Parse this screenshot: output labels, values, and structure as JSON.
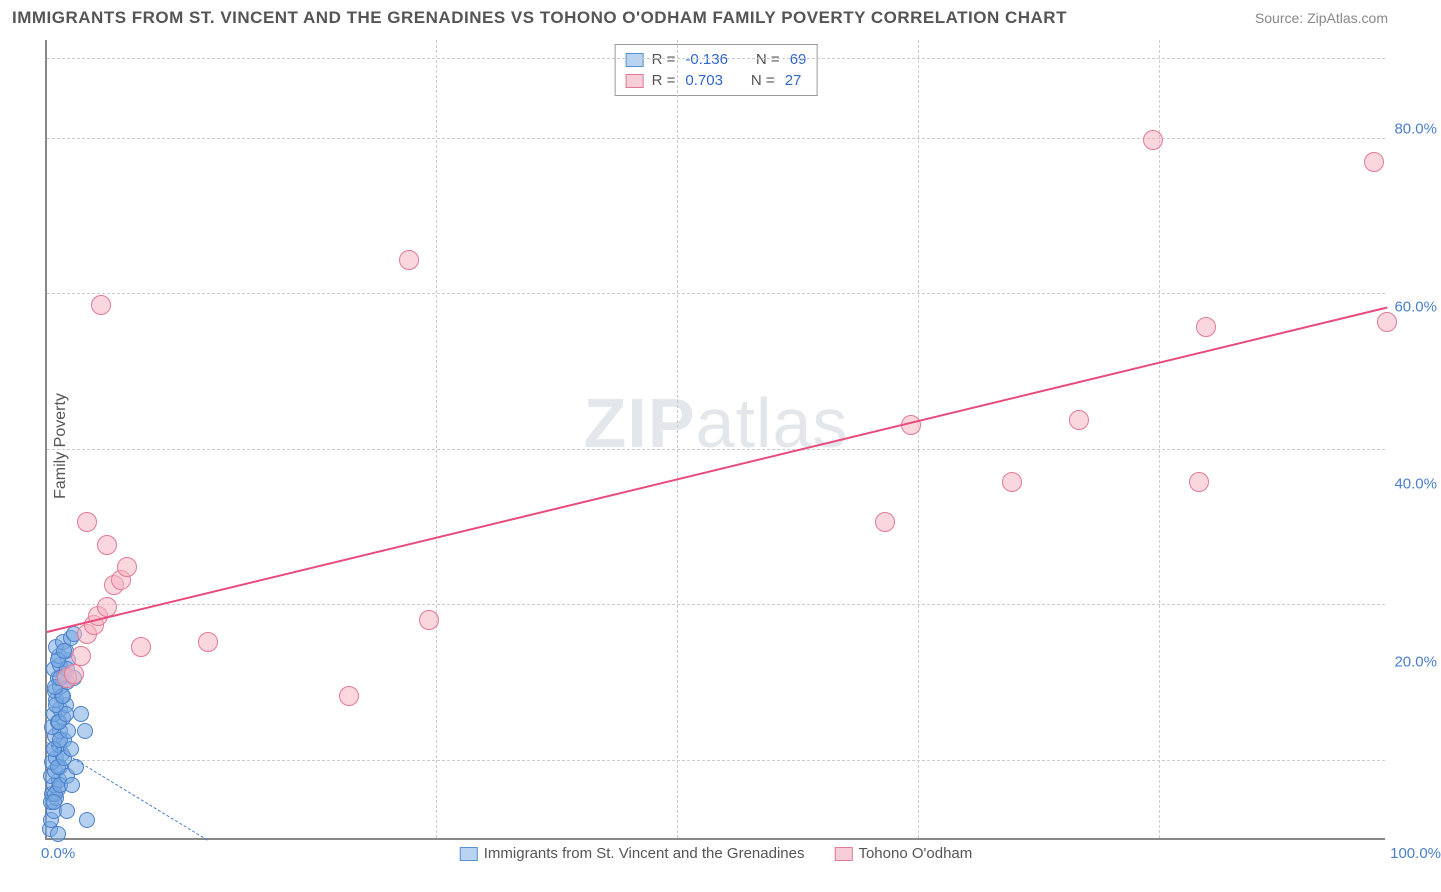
{
  "chart": {
    "type": "scatter",
    "title": "IMMIGRANTS FROM ST. VINCENT AND THE GRENADINES VS TOHONO O'ODHAM FAMILY POVERTY CORRELATION CHART",
    "source": "Source: ZipAtlas.com",
    "ylabel": "Family Poverty",
    "watermark": "ZIPatlas",
    "background_color": "#ffffff",
    "grid_color": "#cccccc",
    "axis_color": "#888888",
    "tick_label_color": "#4a7fc9",
    "title_color": "#555555",
    "title_fontsize": 17,
    "label_fontsize": 16,
    "tick_fontsize": 15,
    "xlim": [
      0,
      100
    ],
    "ylim": [
      0,
      90
    ],
    "yticks": [
      20,
      40,
      60,
      80
    ],
    "ytick_labels": [
      "20.0%",
      "40.0%",
      "60.0%",
      "80.0%"
    ],
    "xtick_left": "0.0%",
    "xtick_right": "100.0%",
    "gridlines_h": [
      9,
      26.5,
      44,
      61.5,
      79,
      88
    ],
    "gridlines_v": [
      29,
      47,
      65,
      83
    ],
    "legend": {
      "rows": [
        {
          "swatch_fill": "#b9d4f0",
          "swatch_border": "#5a8fd0",
          "r_label": "R =",
          "r_value": "-0.136",
          "n_label": "N =",
          "n_value": "69"
        },
        {
          "swatch_fill": "#f7cdd7",
          "swatch_border": "#e27a95",
          "r_label": "R =",
          "r_value": "0.703",
          "n_label": "N =",
          "n_value": "27"
        }
      ]
    },
    "bottom_legend": [
      {
        "swatch_fill": "#b9d4f0",
        "swatch_border": "#5a8fd0",
        "label": "Immigrants from St. Vincent and the Grenadines"
      },
      {
        "swatch_fill": "#f7cdd7",
        "swatch_border": "#e27a95",
        "label": "Tohono O'odham"
      }
    ],
    "series": [
      {
        "name": "Immigrants from St. Vincent and the Grenadines",
        "marker_fill": "rgba(120,170,225,0.55)",
        "marker_border": "#4a7fc9",
        "marker_radius": 8,
        "points": [
          [
            0.2,
            1
          ],
          [
            0.3,
            2
          ],
          [
            0.5,
            3
          ],
          [
            0.3,
            4
          ],
          [
            0.7,
            4.5
          ],
          [
            0.4,
            5
          ],
          [
            0.8,
            5.5
          ],
          [
            0.5,
            6
          ],
          [
            0.9,
            6.5
          ],
          [
            0.3,
            7
          ],
          [
            0.6,
            7.5
          ],
          [
            1.0,
            8
          ],
          [
            0.4,
            8.5
          ],
          [
            0.7,
            9
          ],
          [
            1.1,
            9.5
          ],
          [
            0.5,
            10
          ],
          [
            0.9,
            10.5
          ],
          [
            1.3,
            11
          ],
          [
            0.6,
            11.5
          ],
          [
            1.0,
            12
          ],
          [
            0.4,
            12.5
          ],
          [
            0.8,
            13
          ],
          [
            1.2,
            13.5
          ],
          [
            0.5,
            14
          ],
          [
            1.0,
            14.5
          ],
          [
            1.4,
            15
          ],
          [
            0.7,
            15.5
          ],
          [
            1.1,
            16
          ],
          [
            0.6,
            16.5
          ],
          [
            1.0,
            17
          ],
          [
            1.5,
            17.5
          ],
          [
            0.8,
            18
          ],
          [
            1.3,
            18.5
          ],
          [
            0.5,
            19
          ],
          [
            1.0,
            19.5
          ],
          [
            1.6,
            20
          ],
          [
            0.9,
            20.5
          ],
          [
            1.4,
            21
          ],
          [
            0.7,
            21.5
          ],
          [
            1.2,
            22
          ],
          [
            1.8,
            22.5
          ],
          [
            0.6,
            5
          ],
          [
            1.0,
            6
          ],
          [
            1.5,
            7
          ],
          [
            0.8,
            8
          ],
          [
            1.3,
            9
          ],
          [
            0.5,
            10
          ],
          [
            1.0,
            11
          ],
          [
            1.6,
            12
          ],
          [
            0.9,
            13
          ],
          [
            1.4,
            14
          ],
          [
            0.7,
            15
          ],
          [
            1.2,
            16
          ],
          [
            0.6,
            17
          ],
          [
            1.0,
            18
          ],
          [
            1.5,
            19
          ],
          [
            0.8,
            20
          ],
          [
            1.3,
            21
          ],
          [
            2.0,
            23
          ],
          [
            0.5,
            4
          ],
          [
            1.8,
            10
          ],
          [
            2.2,
            8
          ],
          [
            2.5,
            14
          ],
          [
            1.9,
            6
          ],
          [
            3.0,
            2
          ],
          [
            2.8,
            12
          ],
          [
            1.5,
            3
          ],
          [
            2.0,
            18
          ],
          [
            0.8,
            0.5
          ]
        ],
        "trendline": {
          "x1": 0,
          "y1": 11,
          "x2": 12,
          "y2": 0,
          "color": "#4a7fc9",
          "dashed": true,
          "width": 1.5
        }
      },
      {
        "name": "Tohono O'odham",
        "marker_fill": "rgba(245,180,195,0.55)",
        "marker_border": "#e27a95",
        "marker_radius": 10,
        "points": [
          [
            1.5,
            18
          ],
          [
            2.0,
            18.5
          ],
          [
            2.5,
            20.5
          ],
          [
            3.0,
            23
          ],
          [
            3.5,
            24
          ],
          [
            3.8,
            25
          ],
          [
            4.5,
            26
          ],
          [
            5.0,
            28.5
          ],
          [
            5.5,
            29
          ],
          [
            6.0,
            30.5
          ],
          [
            3.0,
            35.5
          ],
          [
            4.5,
            33
          ],
          [
            7.0,
            21.5
          ],
          [
            12.0,
            22
          ],
          [
            22.5,
            16
          ],
          [
            28.5,
            24.5
          ],
          [
            27.0,
            65
          ],
          [
            4.0,
            60
          ],
          [
            62.5,
            35.5
          ],
          [
            64.5,
            46.5
          ],
          [
            72.0,
            40
          ],
          [
            77.0,
            47
          ],
          [
            86.0,
            40
          ],
          [
            86.5,
            57.5
          ],
          [
            82.5,
            78.5
          ],
          [
            99.0,
            76
          ],
          [
            100.0,
            58
          ]
        ],
        "trendline": {
          "x1": 0,
          "y1": 23.5,
          "x2": 100,
          "y2": 60,
          "color": "#e84a7a",
          "dashed": false,
          "width": 2
        }
      }
    ]
  }
}
